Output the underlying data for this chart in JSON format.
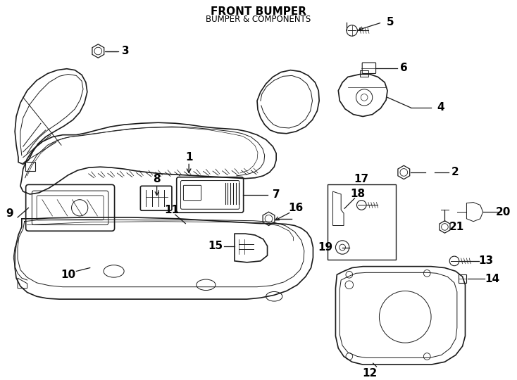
{
  "title": "FRONT BUMPER",
  "subtitle": "BUMPER & COMPONENTS",
  "bg": "#ffffff",
  "lc": "#1a1a1a",
  "fig_w": 7.34,
  "fig_h": 5.4,
  "dpi": 100
}
